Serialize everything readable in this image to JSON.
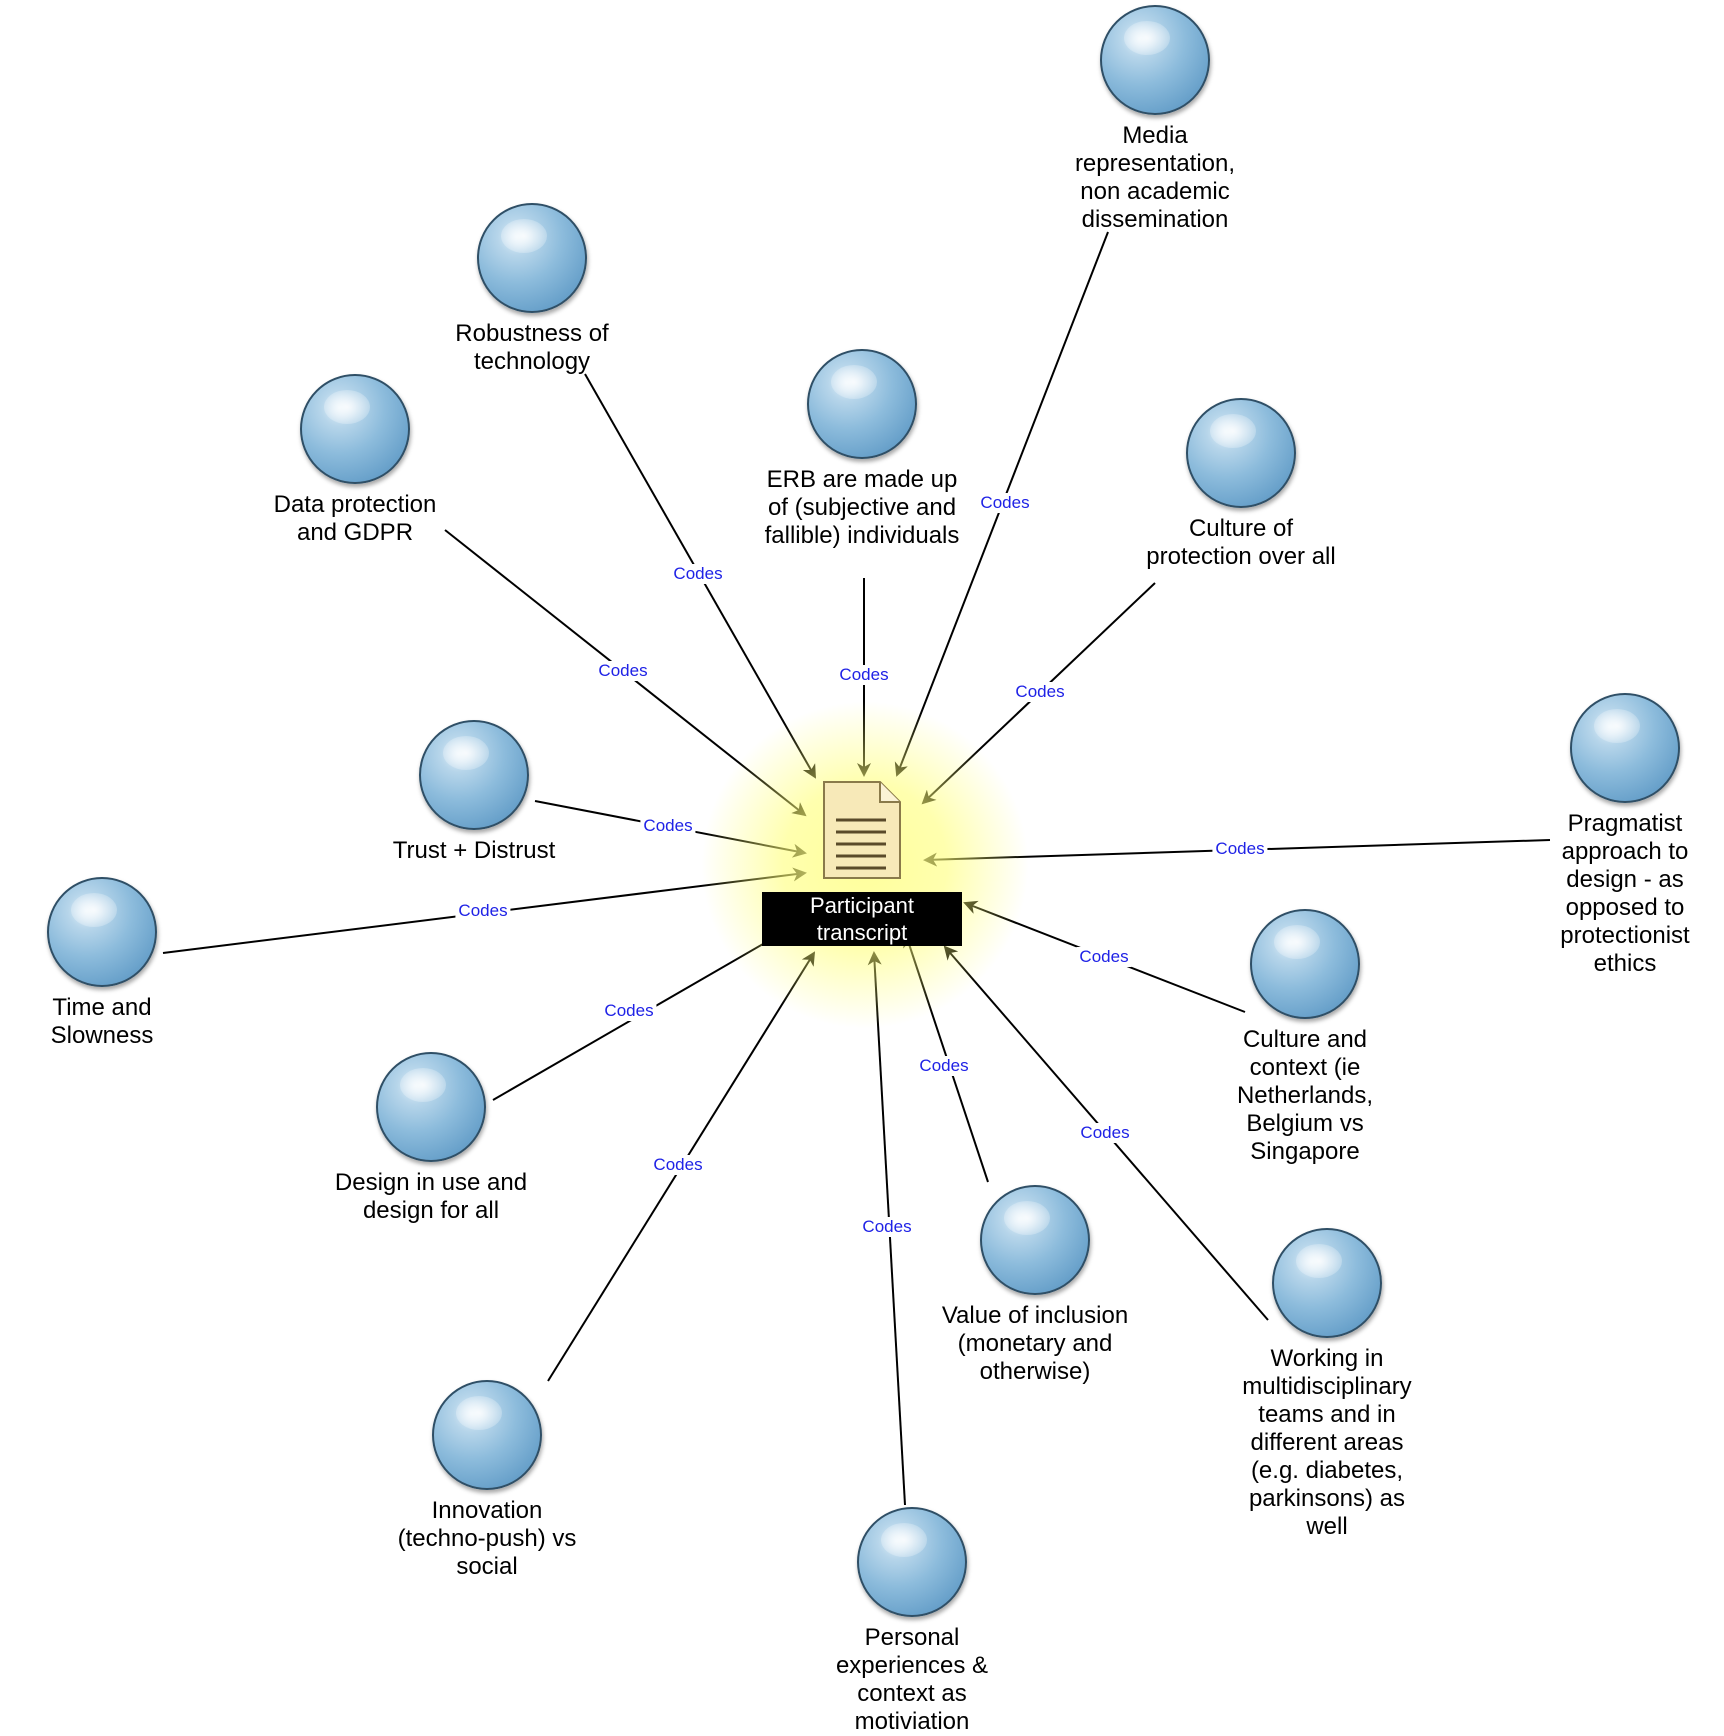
{
  "center": {
    "label_line1": "Participant",
    "label_line2": "transcript",
    "icon": "document-icon"
  },
  "edge_label": "Codes",
  "nodes": [
    {
      "id": "media",
      "label": "Media representation, non academic dissemination"
    },
    {
      "id": "robustness",
      "label": "Robustness of technology"
    },
    {
      "id": "data-protection",
      "label": "Data protection and GDPR"
    },
    {
      "id": "erb",
      "label": "ERB are made up of (subjective and fallible) individuals"
    },
    {
      "id": "culture-protection",
      "label": "Culture of protection over all"
    },
    {
      "id": "pragmatist",
      "label": "Pragmatist approach to design - as opposed to protectionist ethics"
    },
    {
      "id": "trust",
      "label": "Trust + Distrust"
    },
    {
      "id": "time",
      "label": "Time and Slowness"
    },
    {
      "id": "culture-context",
      "label": "Culture and context (ie Netherlands, Belgium vs Singapore"
    },
    {
      "id": "design",
      "label": "Design in use and design for all"
    },
    {
      "id": "value",
      "label": "Value of inclusion (monetary and otherwise)"
    },
    {
      "id": "working",
      "label": "Working in multidisciplinary teams and in different areas (e.g. diabetes, parkinsons) as well"
    },
    {
      "id": "innovation",
      "label": "Innovation (techno-push) vs social"
    },
    {
      "id": "personal",
      "label": "Personal experiences & context as motiviation"
    }
  ]
}
